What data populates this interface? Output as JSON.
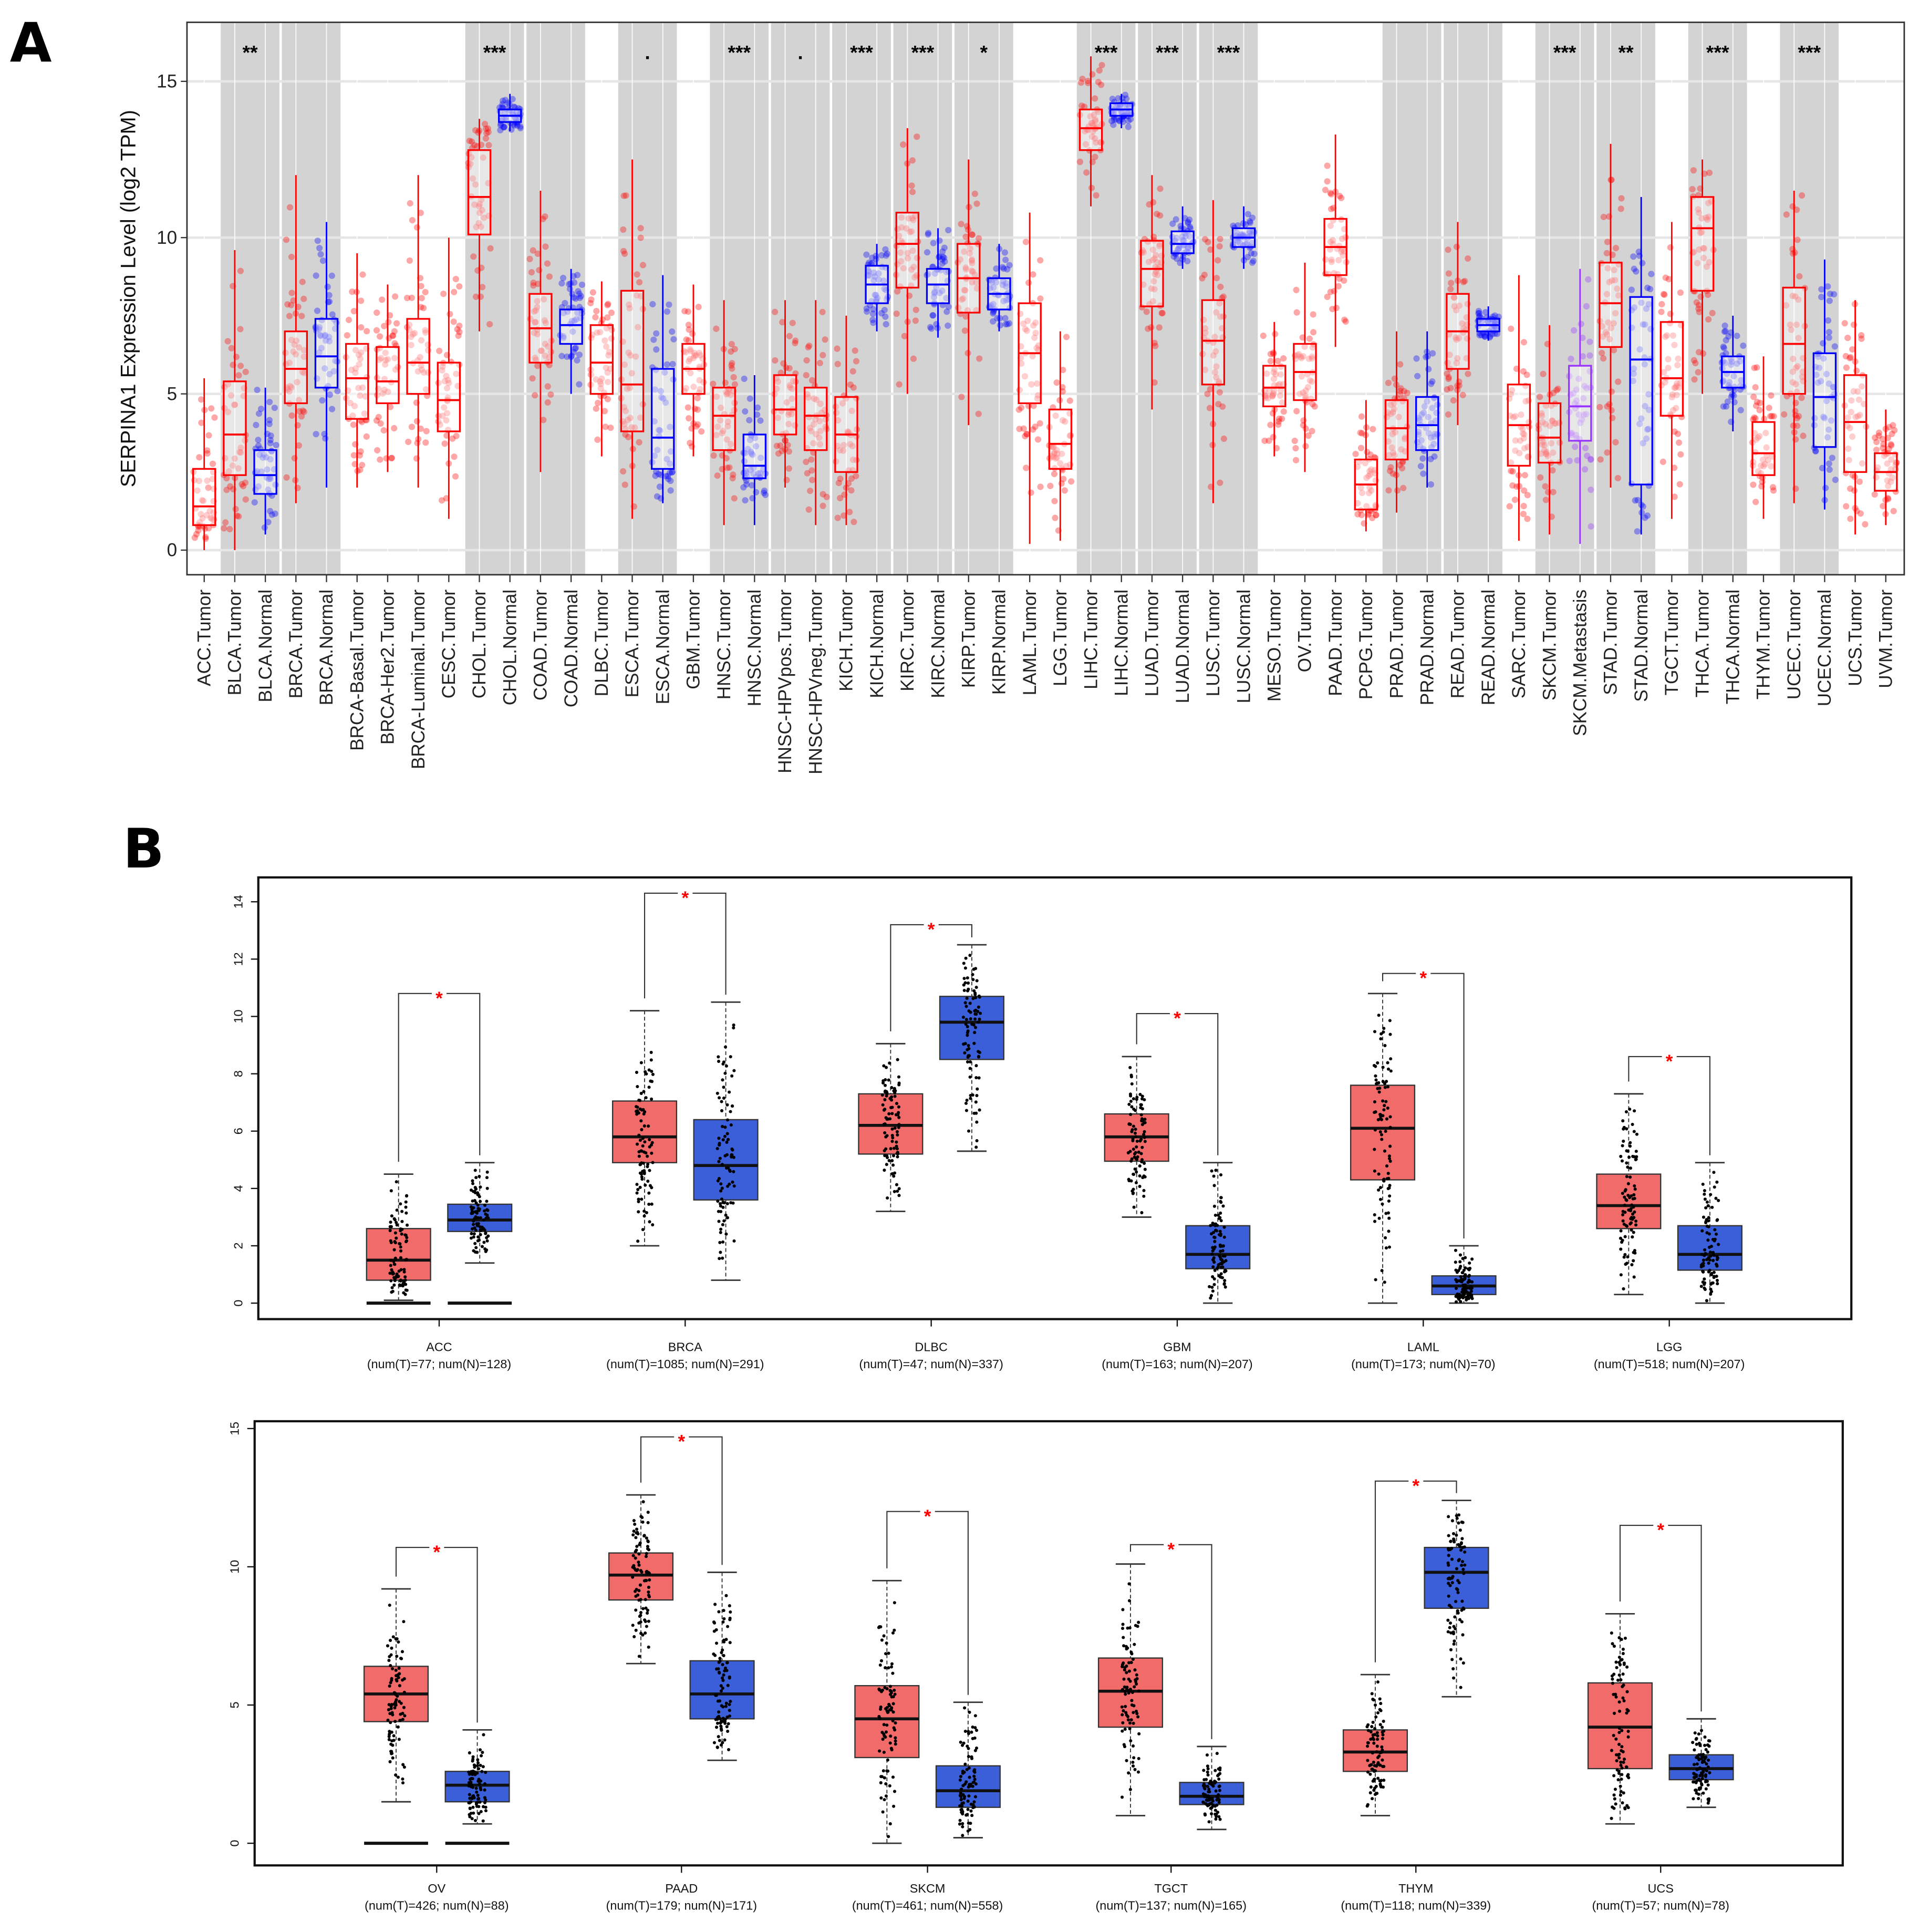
{
  "panels": {
    "a_label": "A",
    "b_label": "B"
  },
  "colors": {
    "tumor": "#ff0000",
    "normal": "#0000ff",
    "metastasis": "#9933ff",
    "band": "#d3d3d3",
    "tumor_fill_b": "#f26b6b",
    "normal_fill_b": "#3a5fd9",
    "sig_b": "#ff0000"
  },
  "chart_data": [
    {
      "type": "box",
      "id": "A",
      "title": "",
      "ylabel": "SERPINA1 Expression Level (log2 TPM)",
      "xlabel": "",
      "ylim": [
        -0.8,
        16.2
      ],
      "yticks": [
        0,
        5,
        10,
        15
      ],
      "grid": true,
      "box_stats_order": [
        "whisker_low",
        "q1",
        "median",
        "q3",
        "whisker_high"
      ],
      "categories": [
        "ACC.Tumor",
        "BLCA.Tumor",
        "BLCA.Normal",
        "BRCA.Tumor",
        "BRCA.Normal",
        "BRCA-Basal.Tumor",
        "BRCA-Her2.Tumor",
        "BRCA-Luminal.Tumor",
        "CESC.Tumor",
        "CHOL.Tumor",
        "CHOL.Normal",
        "COAD.Tumor",
        "COAD.Normal",
        "DLBC.Tumor",
        "ESCA.Tumor",
        "ESCA.Normal",
        "GBM.Tumor",
        "HNSC.Tumor",
        "HNSC.Normal",
        "HNSC-HPVpos.Tumor",
        "HNSC-HPVneg.Tumor",
        "KICH.Tumor",
        "KICH.Normal",
        "KIRC.Tumor",
        "KIRC.Normal",
        "KIRP.Tumor",
        "KIRP.Normal",
        "LAML.Tumor",
        "LGG.Tumor",
        "LIHC.Tumor",
        "LIHC.Normal",
        "LUAD.Tumor",
        "LUAD.Normal",
        "LUSC.Tumor",
        "LUSC.Normal",
        "MESO.Tumor",
        "OV.Tumor",
        "PAAD.Tumor",
        "PCPG.Tumor",
        "PRAD.Tumor",
        "PRAD.Normal",
        "READ.Tumor",
        "READ.Normal",
        "SARC.Tumor",
        "SKCM.Tumor",
        "SKCM.Metastasis",
        "STAD.Tumor",
        "STAD.Normal",
        "TGCT.Tumor",
        "THCA.Tumor",
        "THCA.Normal",
        "THYM.Tumor",
        "UCEC.Tumor",
        "UCEC.Normal",
        "UCS.Tumor",
        "UVM.Tumor"
      ],
      "boxes": [
        [
          0,
          0.8,
          1.4,
          2.6,
          5.5
        ],
        [
          0,
          2.4,
          3.7,
          5.4,
          9.6
        ],
        [
          0.5,
          1.8,
          2.4,
          3.2,
          5.2
        ],
        [
          1.5,
          4.7,
          5.8,
          7.0,
          12
        ],
        [
          2,
          5.2,
          6.2,
          7.4,
          10.5
        ],
        [
          2,
          4.2,
          5.5,
          6.6,
          9.5
        ],
        [
          2.5,
          4.7,
          5.4,
          6.5,
          8.5
        ],
        [
          2,
          5,
          6,
          7.4,
          12
        ],
        [
          1,
          3.8,
          4.8,
          6.0,
          10
        ],
        [
          7,
          10.1,
          11.3,
          12.8,
          13.8
        ],
        [
          13.4,
          13.7,
          13.9,
          14.1,
          14.6
        ],
        [
          2.5,
          6,
          7.1,
          8.2,
          11.5
        ],
        [
          5,
          6.6,
          7.2,
          7.7,
          9
        ],
        [
          3,
          5,
          6,
          7.2,
          8.6
        ],
        [
          1,
          3.8,
          5.3,
          8.3,
          12.5
        ],
        [
          1.5,
          2.6,
          3.6,
          5.8,
          8.8
        ],
        [
          3,
          5,
          5.8,
          6.6,
          8.5
        ],
        [
          0.8,
          3.2,
          4.3,
          5.2,
          8
        ],
        [
          0.8,
          2.3,
          2.7,
          3.7,
          5.6
        ],
        [
          2,
          3.7,
          4.5,
          5.6,
          8
        ],
        [
          0.8,
          3.2,
          4.3,
          5.2,
          8
        ],
        [
          0.8,
          2.5,
          3.7,
          4.9,
          7.5
        ],
        [
          7,
          7.9,
          8.5,
          9.1,
          9.8
        ],
        [
          5,
          8.4,
          9.8,
          10.8,
          13.5
        ],
        [
          6.8,
          7.9,
          8.5,
          9.0,
          10.3
        ],
        [
          4,
          7.6,
          8.7,
          9.8,
          12.5
        ],
        [
          7,
          7.7,
          8.2,
          8.7,
          9.8
        ],
        [
          0.2,
          4.7,
          6.3,
          7.9,
          10.8
        ],
        [
          0.3,
          2.6,
          3.4,
          4.5,
          7
        ],
        [
          11,
          12.8,
          13.5,
          14.1,
          15.8
        ],
        [
          13.5,
          13.9,
          14.1,
          14.3,
          14.6
        ],
        [
          4.5,
          7.8,
          9,
          9.9,
          12
        ],
        [
          9,
          9.5,
          9.8,
          10.2,
          11
        ],
        [
          1.5,
          5.3,
          6.7,
          8,
          11.2
        ],
        [
          9,
          9.7,
          10,
          10.3,
          11
        ],
        [
          3,
          4.6,
          5.2,
          5.9,
          7.3
        ],
        [
          2.5,
          4.8,
          5.7,
          6.6,
          9.2
        ],
        [
          6.5,
          8.8,
          9.7,
          10.6,
          13.3
        ],
        [
          0.6,
          1.3,
          2.1,
          2.9,
          4.8
        ],
        [
          1.2,
          2.9,
          3.9,
          4.8,
          7
        ],
        [
          2,
          3.2,
          4,
          4.9,
          7
        ],
        [
          4,
          5.8,
          7,
          8.2,
          10.5
        ],
        [
          6.7,
          7,
          7.2,
          7.4,
          7.8
        ],
        [
          0.3,
          2.7,
          4,
          5.3,
          8.8
        ],
        [
          0.5,
          2.8,
          3.6,
          4.7,
          7.2
        ],
        [
          0.2,
          3.5,
          4.6,
          5.9,
          9
        ],
        [
          2,
          6.5,
          7.9,
          9.2,
          13
        ],
        [
          0.5,
          2.1,
          6.1,
          8.1,
          11.3
        ],
        [
          1,
          4.3,
          5.5,
          7.3,
          10.5
        ],
        [
          5,
          8.3,
          10.3,
          11.3,
          12.5
        ],
        [
          3.8,
          5.2,
          5.7,
          6.2,
          7.5
        ],
        [
          1,
          2.4,
          3.1,
          4.1,
          6.2
        ],
        [
          1.5,
          5,
          6.6,
          8.4,
          11.5
        ],
        [
          1.3,
          3.3,
          4.9,
          6.3,
          9.3
        ],
        [
          0.5,
          2.5,
          4.1,
          5.6,
          8
        ],
        [
          0.8,
          1.9,
          2.5,
          3.1,
          4.5
        ]
      ],
      "comparisons": [
        {
          "pair": [
            1,
            2
          ],
          "label": "**"
        },
        {
          "pair": [
            3,
            4
          ],
          "label": ""
        },
        {
          "pair": [
            9,
            10
          ],
          "label": "***"
        },
        {
          "pair": [
            11,
            12
          ],
          "label": ""
        },
        {
          "pair": [
            14,
            15
          ],
          "label": "."
        },
        {
          "pair": [
            17,
            18
          ],
          "label": "***"
        },
        {
          "pair": [
            19,
            20
          ],
          "label": "."
        },
        {
          "pair": [
            21,
            22
          ],
          "label": "***"
        },
        {
          "pair": [
            23,
            24
          ],
          "label": "***"
        },
        {
          "pair": [
            25,
            26
          ],
          "label": "*"
        },
        {
          "pair": [
            29,
            30
          ],
          "label": "***"
        },
        {
          "pair": [
            31,
            32
          ],
          "label": "***"
        },
        {
          "pair": [
            33,
            34
          ],
          "label": "***"
        },
        {
          "pair": [
            39,
            40
          ],
          "label": ""
        },
        {
          "pair": [
            41,
            42
          ],
          "label": ""
        },
        {
          "pair": [
            44,
            45
          ],
          "label": "***"
        },
        {
          "pair": [
            46,
            47
          ],
          "label": "**"
        },
        {
          "pair": [
            49,
            50
          ],
          "label": "***"
        },
        {
          "pair": [
            52,
            53
          ],
          "label": "***"
        }
      ]
    },
    {
      "type": "box",
      "id": "B-top",
      "ylim": [
        -0.5,
        14.8
      ],
      "yticks": [
        0,
        2,
        4,
        6,
        8,
        10,
        12,
        14
      ],
      "groups": [
        {
          "name": "ACC",
          "sub": "(num(T)=77; num(N)=128)",
          "tumor": [
            0.1,
            0.8,
            1.5,
            2.6,
            4.5
          ],
          "normal": [
            1.4,
            2.5,
            2.9,
            3.45,
            4.9
          ],
          "zero_line": true,
          "sig": "*",
          "bracket": 10.8
        },
        {
          "name": "BRCA",
          "sub": "(num(T)=1085; num(N)=291)",
          "tumor": [
            2,
            4.9,
            5.8,
            7.05,
            10.2
          ],
          "normal": [
            0.8,
            3.6,
            4.8,
            6.4,
            10.5
          ],
          "zero_line": false,
          "sig": "*",
          "bracket": 14.3
        },
        {
          "name": "DLBC",
          "sub": "(num(T)=47; num(N)=337)",
          "tumor": [
            3.2,
            5.2,
            6.2,
            7.3,
            9.05
          ],
          "normal": [
            5.3,
            8.5,
            9.8,
            10.7,
            12.5
          ],
          "zero_line": false,
          "sig": "*",
          "bracket": 13.2
        },
        {
          "name": "GBM",
          "sub": "(num(T)=163; num(N)=207)",
          "tumor": [
            3,
            4.95,
            5.8,
            6.6,
            8.6
          ],
          "normal": [
            0,
            1.2,
            1.7,
            2.7,
            4.9
          ],
          "zero_line": false,
          "sig": "*",
          "bracket": 10.1
        },
        {
          "name": "LAML",
          "sub": "(num(T)=173; num(N)=70)",
          "tumor": [
            0,
            4.3,
            6.1,
            7.6,
            10.8
          ],
          "normal": [
            0,
            0.3,
            0.6,
            0.95,
            2
          ],
          "zero_line": false,
          "sig": "*",
          "bracket": 11.5
        },
        {
          "name": "LGG",
          "sub": "(num(T)=518; num(N)=207)",
          "tumor": [
            0.3,
            2.6,
            3.4,
            4.5,
            7.3
          ],
          "normal": [
            0,
            1.15,
            1.7,
            2.7,
            4.9
          ],
          "zero_line": false,
          "sig": "*",
          "bracket": 8.6
        }
      ]
    },
    {
      "type": "box",
      "id": "B-bottom",
      "ylim": [
        -0.8,
        15.3
      ],
      "yticks": [
        0,
        5,
        10,
        15
      ],
      "groups": [
        {
          "name": "OV",
          "sub": "(num(T)=426; num(N)=88)",
          "tumor": [
            1.5,
            4.4,
            5.4,
            6.4,
            9.2
          ],
          "normal": [
            0.7,
            1.5,
            2.1,
            2.6,
            4.1
          ],
          "zero_line": true,
          "sig": "*",
          "bracket": 10.7
        },
        {
          "name": "PAAD",
          "sub": "(num(T)=179; num(N)=171)",
          "tumor": [
            6.5,
            8.8,
            9.7,
            10.5,
            12.6
          ],
          "normal": [
            3,
            4.5,
            5.4,
            6.6,
            9.8
          ],
          "zero_line": false,
          "sig": "*",
          "bracket": 14.7
        },
        {
          "name": "SKCM",
          "sub": "(num(T)=461; num(N)=558)",
          "tumor": [
            0,
            3.1,
            4.5,
            5.7,
            9.5
          ],
          "normal": [
            0.2,
            1.3,
            1.9,
            2.8,
            5.1
          ],
          "zero_line": false,
          "sig": "*",
          "bracket": 12
        },
        {
          "name": "TGCT",
          "sub": "(num(T)=137; num(N)=165)",
          "tumor": [
            1,
            4.2,
            5.5,
            6.7,
            10.1
          ],
          "normal": [
            0.5,
            1.4,
            1.7,
            2.2,
            3.5
          ],
          "zero_line": false,
          "sig": "*",
          "bracket": 10.8
        },
        {
          "name": "THYM",
          "sub": "(num(T)=118; num(N)=339)",
          "tumor": [
            1,
            2.6,
            3.3,
            4.1,
            6.1
          ],
          "normal": [
            5.3,
            8.5,
            9.8,
            10.7,
            12.4
          ],
          "zero_line": false,
          "sig": "*",
          "bracket": 13.1
        },
        {
          "name": "UCS",
          "sub": "(num(T)=57; num(N)=78)",
          "tumor": [
            0.7,
            2.7,
            4.2,
            5.8,
            8.3
          ],
          "normal": [
            1.3,
            2.3,
            2.7,
            3.2,
            4.5
          ],
          "zero_line": false,
          "sig": "*",
          "bracket": 11.5
        }
      ]
    }
  ]
}
